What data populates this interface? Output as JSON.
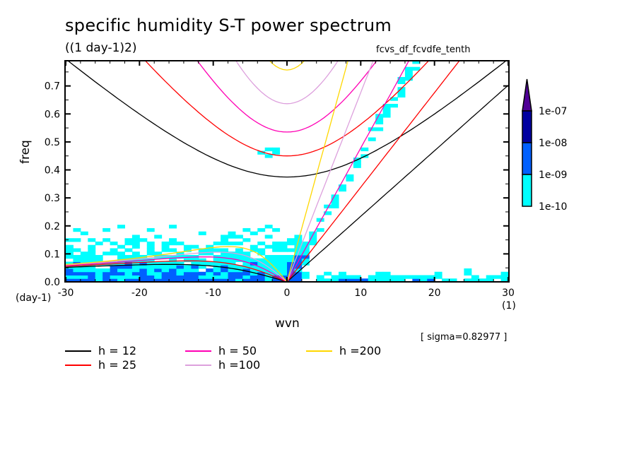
{
  "chart_data": {
    "type": "heatmap",
    "title": "specific humidity S-T power spectrum",
    "subtitle": "((1 day-1)2)",
    "experiment": "fcvs_df_fcvdfe_tenth",
    "annotation": "[ sigma=0.82977 ]",
    "xlabel": "wvn",
    "ylabel": "freq",
    "x_unit": "(1)",
    "y_unit": "(day-1)",
    "xlim": [
      -30,
      30
    ],
    "ylim": [
      0,
      0.79
    ],
    "xticks": [
      -30,
      -20,
      -10,
      0,
      10,
      20,
      30
    ],
    "xtick_labels": [
      "-30",
      "-20",
      "-10",
      "0",
      "10",
      "20",
      "30"
    ],
    "yticks": [
      0.0,
      0.1,
      0.2,
      0.3,
      0.4,
      0.5,
      0.6,
      0.7
    ],
    "ytick_labels": [
      "0.0",
      "0.1",
      "0.2",
      "0.3",
      "0.4",
      "0.5",
      "0.6",
      "0.7"
    ],
    "colorbar": {
      "levels": [
        "1e-10",
        "1e-09",
        "1e-08",
        "1e-07"
      ],
      "colors": [
        "#00ffff",
        "#0060ff",
        "#0000a0",
        "#500096"
      ],
      "extend": "max"
    },
    "contour_description": "Power >1e-10 concentrated at low frequency (<0.3 day-1) for westward wavenumbers, and along the eastward Kelvin-wave band; patches >1e-09 near freq 0.03-0.08",
    "dispersion_curves": {
      "equivalent_depths": [
        12,
        25,
        50,
        100,
        200
      ],
      "legend": [
        {
          "label": "h = 12",
          "color": "#000000"
        },
        {
          "label": "h = 25",
          "color": "#ff0000"
        },
        {
          "label": "h = 50",
          "color": "#ff00b4"
        },
        {
          "label": "h =100",
          "color": "#dda0dd"
        },
        {
          "label": "h =200",
          "color": "#ffd700"
        }
      ],
      "wave_types": [
        "Kelvin",
        "equatorial Rossby (n=1)",
        "inertia-gravity (n=1)"
      ]
    }
  }
}
